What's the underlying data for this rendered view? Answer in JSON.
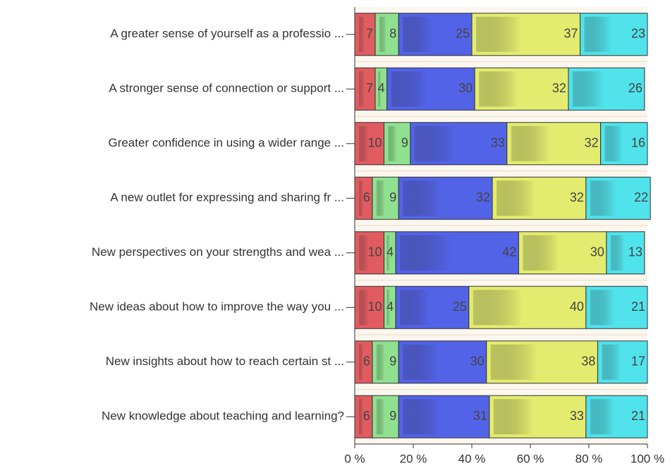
{
  "chart_data": {
    "type": "stacked-bar-horizontal",
    "categories": [
      "A greater sense of yourself as a professio ...",
      "A stronger sense of connection or support  ...",
      "Greater confidence in using a wider range  ...",
      "A new outlet for expressing and sharing fr ...",
      "New perspectives on your strengths and wea ...",
      "New ideas about how to improve the way you ...",
      "New insights about how to reach certain st ...",
      "New knowledge about teaching and learning?"
    ],
    "series": [
      {
        "color": "#e05c60",
        "values": [
          7,
          7,
          10,
          6,
          10,
          10,
          6,
          6
        ]
      },
      {
        "color": "#8fe08f",
        "values": [
          8,
          4,
          9,
          9,
          4,
          4,
          9,
          9
        ]
      },
      {
        "color": "#5363e8",
        "values": [
          25,
          30,
          33,
          32,
          42,
          25,
          30,
          31
        ]
      },
      {
        "color": "#e3ec6e",
        "values": [
          37,
          32,
          32,
          32,
          30,
          40,
          38,
          33
        ]
      },
      {
        "color": "#50e3ec",
        "values": [
          23,
          26,
          16,
          22,
          13,
          21,
          17,
          21
        ]
      }
    ],
    "xlim": [
      0,
      100
    ],
    "xticks": [
      {
        "value": 0,
        "label": "0 %"
      },
      {
        "value": 20,
        "label": "20 %"
      },
      {
        "value": 40,
        "label": "40 %"
      },
      {
        "value": 60,
        "label": "60 %"
      },
      {
        "value": 80,
        "label": "80 %"
      },
      {
        "value": 100,
        "label": "100 %"
      }
    ]
  }
}
